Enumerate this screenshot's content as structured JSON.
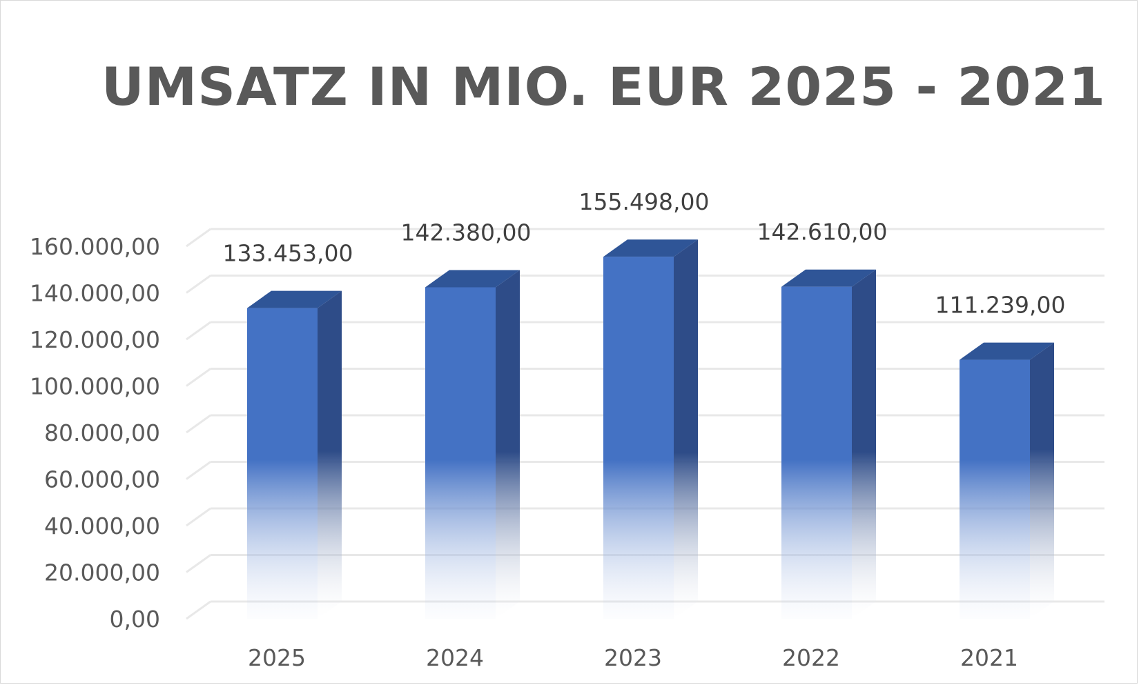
{
  "chart_data": {
    "type": "bar",
    "title": "UMSATZ IN MIO. EUR 2025 - 2021",
    "categories": [
      "2025",
      "2024",
      "2023",
      "2022",
      "2021"
    ],
    "values": [
      133453,
      142380,
      155498,
      142610,
      111239
    ],
    "data_labels": [
      "133.453,00",
      "142.380,00",
      "155.498,00",
      "142.610,00",
      "111.239,00"
    ],
    "y_ticks": [
      "0,00",
      "20.000,00",
      "40.000,00",
      "60.000,00",
      "80.000,00",
      "100.000,00",
      "120.000,00",
      "140.000,00",
      "160.000,00"
    ],
    "ylim": [
      0,
      160000
    ],
    "grid": true,
    "legend": "none",
    "style": "3d-column",
    "bar_color": "#4472c4",
    "bar_side_color": "#2e4c88",
    "bar_top_color": "#2f5597",
    "gridline_color": "#e8e8e8",
    "text_color": "#595959"
  }
}
